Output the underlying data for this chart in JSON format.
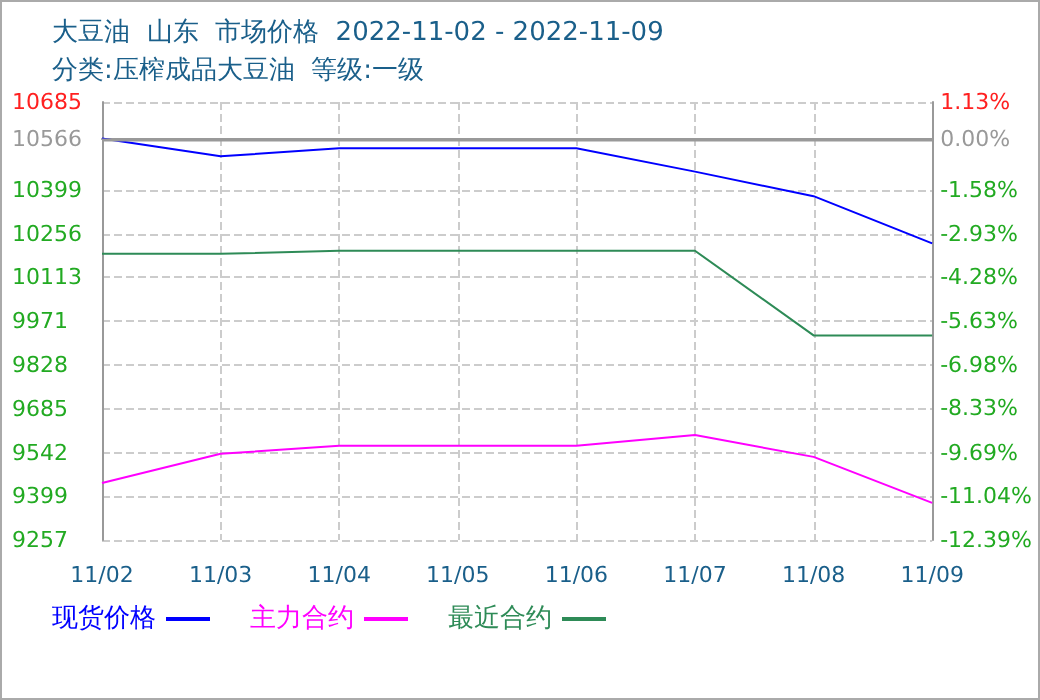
{
  "chart_data": {
    "type": "line",
    "title": "大豆油  山东  市场价格  2022-11-02 - 2022-11-09",
    "subtitle": "分类:压榨成品大豆油  等级:一级",
    "categories": [
      "11/02",
      "11/03",
      "11/04",
      "11/05",
      "11/06",
      "11/07",
      "11/08",
      "11/09"
    ],
    "series": [
      {
        "name": "现货价格",
        "color": "#0000ff",
        "values": [
          10566,
          10508,
          10534,
          10534,
          10534,
          10458,
          10378,
          10224
        ]
      },
      {
        "name": "主力合约",
        "color": "#ff00ff",
        "values": [
          9443,
          9538,
          9564,
          9564,
          9564,
          9599,
          9528,
          9378
        ]
      },
      {
        "name": "最近合约",
        "color": "#2e8b57",
        "values": [
          10190,
          10190,
          10200,
          10200,
          10200,
          10200,
          9924,
          9924
        ]
      }
    ],
    "ylim": [
      9257,
      10685
    ],
    "yticks": [
      9257,
      9399,
      9542,
      9685,
      9828,
      9971,
      10113,
      10256,
      10399,
      10566,
      10685
    ],
    "y2lim": [
      -12.39,
      1.13
    ],
    "y2ticks": [
      {
        "value": -12.39,
        "label": "-12.39%"
      },
      {
        "value": -11.04,
        "label": "-11.04%"
      },
      {
        "value": -9.69,
        "label": "-9.69%"
      },
      {
        "value": -8.33,
        "label": "-8.33%"
      },
      {
        "value": -6.98,
        "label": "-6.98%"
      },
      {
        "value": -5.63,
        "label": "-5.63%"
      },
      {
        "value": -4.28,
        "label": "-4.28%"
      },
      {
        "value": -2.93,
        "label": "-2.93%"
      },
      {
        "value": -1.58,
        "label": "-1.58%"
      },
      {
        "value": 0,
        "label": "0.00%"
      },
      {
        "value": 1.13,
        "label": "1.13%"
      }
    ],
    "ref_lines": [
      {
        "axis": "y",
        "value": 10566,
        "color": "#999999"
      }
    ],
    "grid": true,
    "legend": "bottom",
    "marker": "none",
    "line_style": "solid"
  }
}
